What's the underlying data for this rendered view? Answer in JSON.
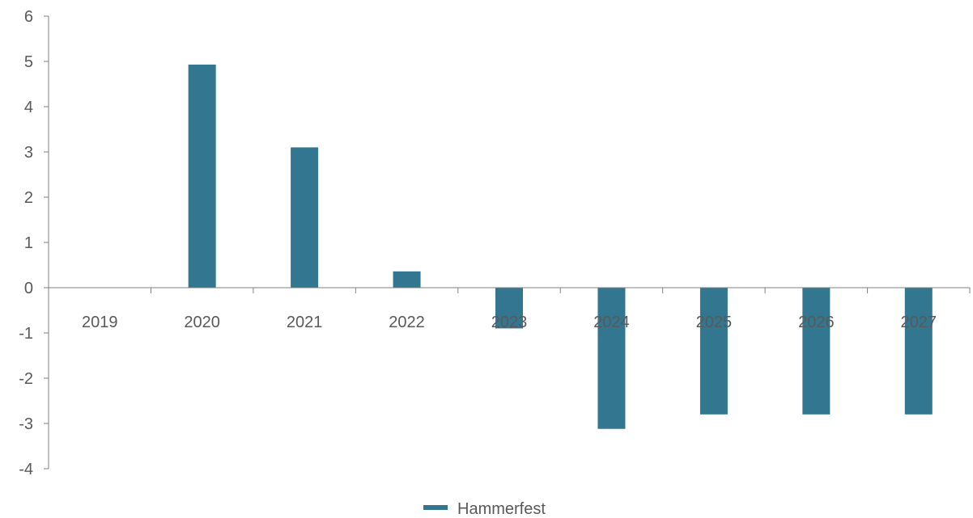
{
  "chart_data": {
    "type": "bar",
    "categories": [
      "2019",
      "2020",
      "2021",
      "2022",
      "2023",
      "2024",
      "2025",
      "2026",
      "2027"
    ],
    "series": [
      {
        "name": "Hammerfest",
        "values": [
          0,
          4.93,
          3.1,
          0.36,
          -0.9,
          -3.12,
          -2.8,
          -2.8,
          -2.8
        ]
      }
    ],
    "title": "",
    "xlabel": "",
    "ylabel": "",
    "ylim": [
      -4,
      6
    ],
    "yticks": [
      -4,
      -3,
      -2,
      -1,
      0,
      1,
      2,
      3,
      4,
      5,
      6
    ],
    "ytick_labels": [
      "-4",
      "-3",
      "-2",
      "-1",
      "0",
      "1",
      "2",
      "3",
      "4",
      "5",
      "6"
    ],
    "grid": false,
    "legend_position": "bottom-center",
    "colors": {
      "bar": "#33768f",
      "axis": "#808080",
      "text": "#595959"
    }
  }
}
